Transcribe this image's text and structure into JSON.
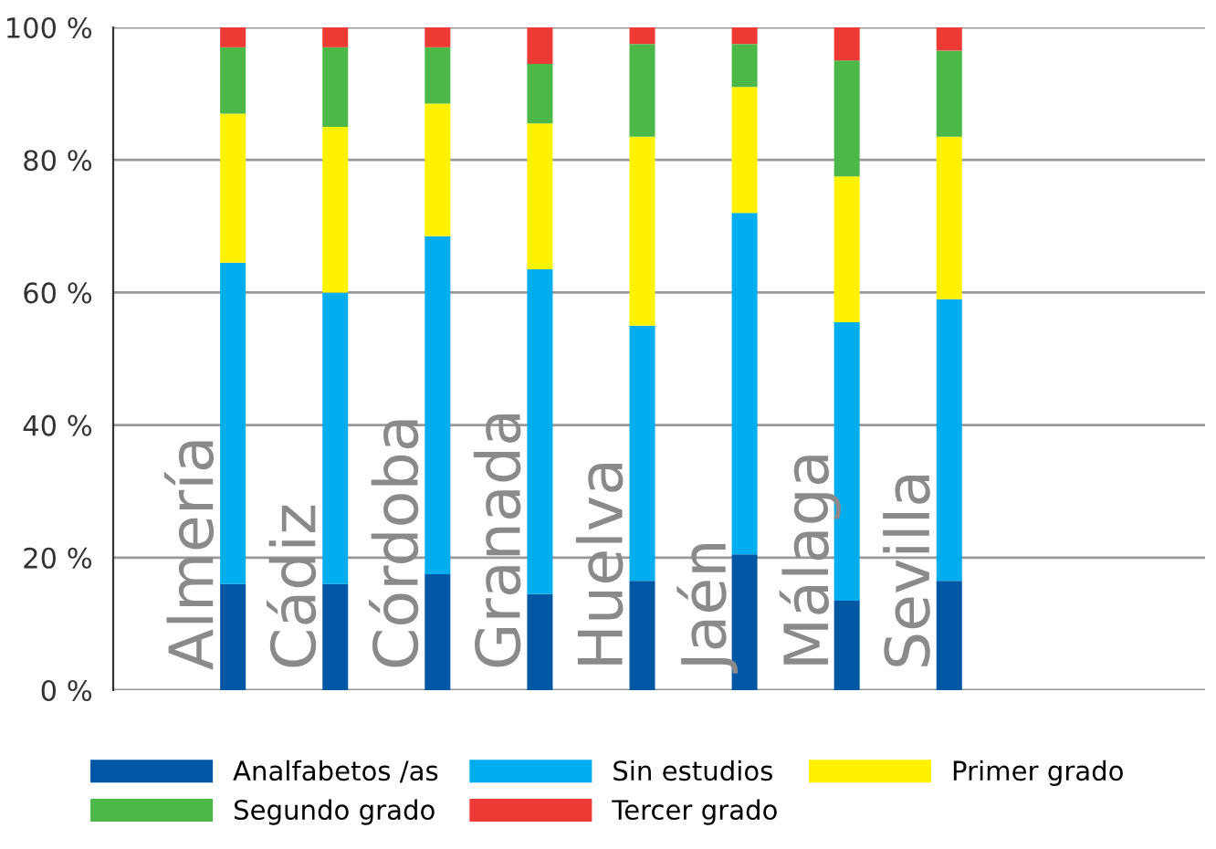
{
  "chart_data": {
    "type": "bar",
    "stacked": true,
    "categories": [
      "Almería",
      "Cádiz",
      "Córdoba",
      "Granada",
      "Huelva",
      "Jaén",
      "Málaga",
      "Sevilla"
    ],
    "series": [
      {
        "name": "Analfabetos /as",
        "color": "#0057a4",
        "values": [
          16,
          16,
          17.5,
          14.5,
          16.5,
          20.5,
          13.5,
          16.5
        ]
      },
      {
        "name": "Sin estudios",
        "color": "#00aeef",
        "values": [
          48.5,
          44,
          51,
          49,
          38.5,
          51.5,
          42,
          42.5
        ]
      },
      {
        "name": "Primer grado",
        "color": "#fff200",
        "values": [
          22.5,
          25,
          20,
          22,
          28.5,
          19,
          22,
          24.5
        ]
      },
      {
        "name": "Segundo grado",
        "color": "#4cb848",
        "values": [
          10,
          12,
          8.5,
          9,
          14,
          6.5,
          17.5,
          13
        ]
      },
      {
        "name": "Tercer grado",
        "color": "#ee3a35",
        "values": [
          3,
          3,
          3,
          5.5,
          2.5,
          2.5,
          5,
          3.5
        ]
      }
    ],
    "ylim": [
      0,
      100
    ],
    "yticks": [
      {
        "value": 0,
        "label": "0 %"
      },
      {
        "value": 20,
        "label": "20 %"
      },
      {
        "value": 40,
        "label": "40 %"
      },
      {
        "value": 60,
        "label": "60 %"
      },
      {
        "value": 80,
        "label": "80 %"
      },
      {
        "value": 100,
        "label": "100 %"
      }
    ],
    "grid": "y",
    "legend": "bottom"
  }
}
